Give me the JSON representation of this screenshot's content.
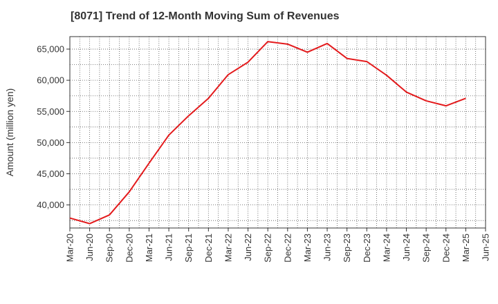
{
  "chart_data": {
    "type": "line",
    "title": "[8071]  Trend of 12-Month Moving Sum of Revenues",
    "xlabel": "",
    "ylabel": "Amount (million yen)",
    "x": [
      "Mar-20",
      "Jun-20",
      "Sep-20",
      "Dec-20",
      "Mar-21",
      "Jun-21",
      "Sep-21",
      "Dec-21",
      "Mar-22",
      "Jun-22",
      "Sep-22",
      "Dec-22",
      "Mar-23",
      "Jun-23",
      "Sep-23",
      "Dec-23",
      "Mar-24",
      "Jun-24",
      "Sep-24",
      "Dec-24",
      "Mar-25"
    ],
    "x_ticks": [
      "Mar-20",
      "Jun-20",
      "Sep-20",
      "Dec-20",
      "Mar-21",
      "Jun-21",
      "Sep-21",
      "Dec-21",
      "Mar-22",
      "Jun-22",
      "Sep-22",
      "Dec-22",
      "Mar-23",
      "Jun-23",
      "Sep-23",
      "Dec-23",
      "Mar-24",
      "Jun-24",
      "Sep-24",
      "Dec-24",
      "Mar-25",
      "Jun-25"
    ],
    "y_ticks": [
      40000,
      45000,
      50000,
      55000,
      60000,
      65000
    ],
    "y_tick_labels": [
      "40,000",
      "45,000",
      "50,000",
      "55,000",
      "60,000",
      "65,000"
    ],
    "ylim": [
      36300,
      67000
    ],
    "grid": true,
    "series": [
      {
        "color": "#e31a1c",
        "values": [
          37900,
          37000,
          38400,
          42100,
          46700,
          51200,
          54300,
          57100,
          60900,
          62900,
          66200,
          65800,
          64500,
          65900,
          63500,
          63000,
          60800,
          58100,
          56700,
          55900,
          57100
        ]
      }
    ]
  }
}
